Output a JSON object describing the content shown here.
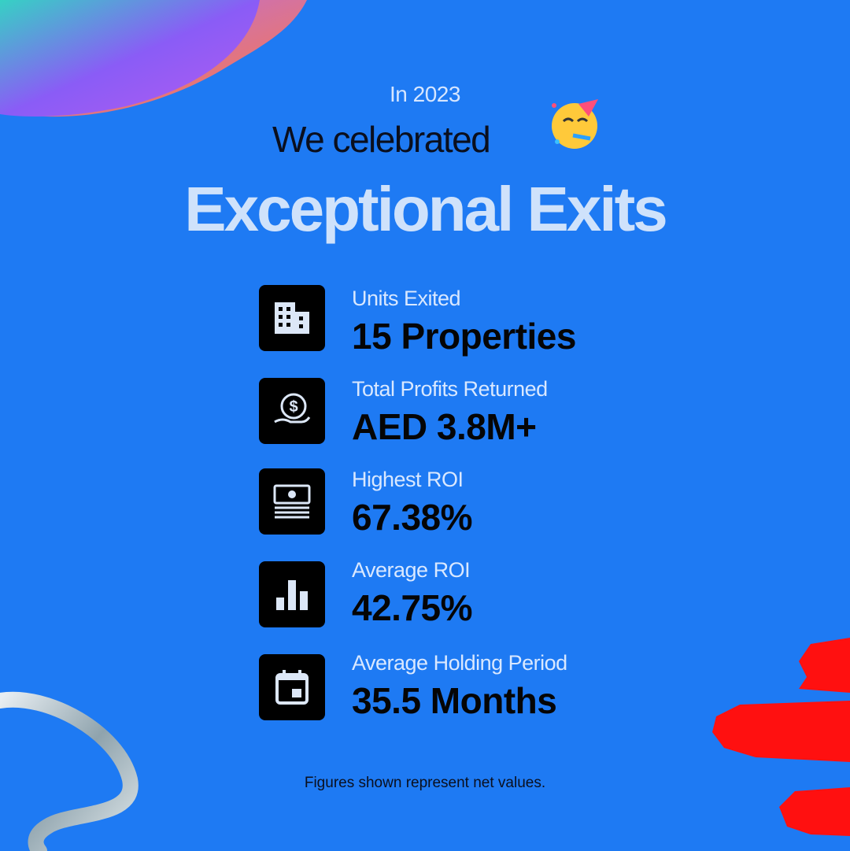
{
  "header": {
    "kicker": "In 2023",
    "line": "We celebrated",
    "title": "Exceptional Exits"
  },
  "stats": [
    {
      "label": "Units Exited",
      "value": "15 Properties"
    },
    {
      "label": "Total Profits Returned",
      "value": "AED 3.8M+"
    },
    {
      "label": "Highest ROI",
      "value": "67.38%"
    },
    {
      "label": "Average ROI",
      "value": "42.75%"
    },
    {
      "label": "Average Holding Period",
      "value": "35.5 Months"
    }
  ],
  "footnote": "Figures shown represent net values."
}
